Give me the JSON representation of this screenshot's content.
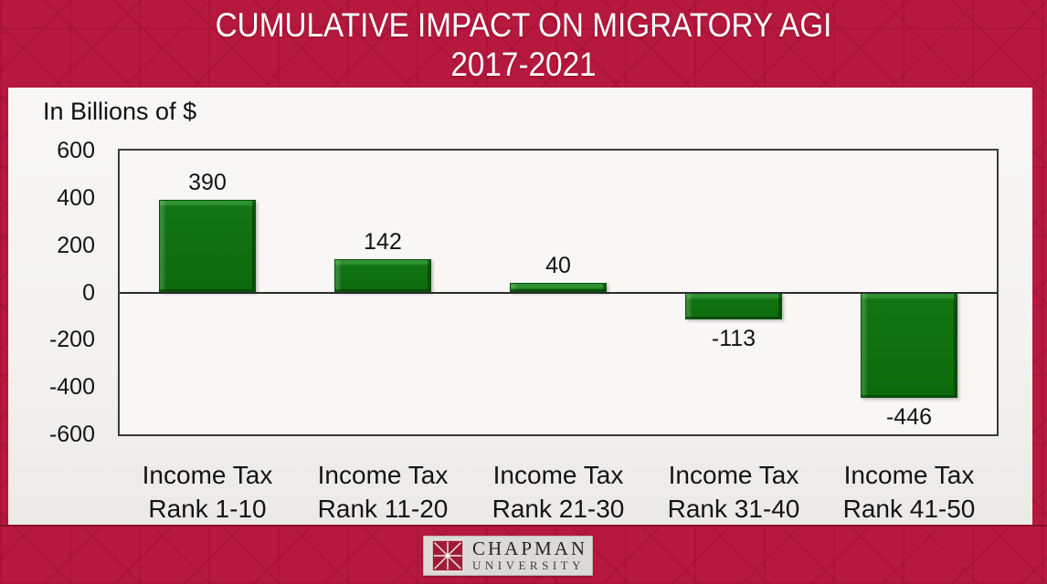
{
  "header": {
    "title_line1": "CUMULATIVE IMPACT ON MIGRATORY AGI",
    "title_line2": "2017-2021"
  },
  "chart": {
    "units_label": "In Billions of $"
  },
  "chart_data": {
    "type": "bar",
    "title": "CUMULATIVE IMPACT ON MIGRATORY AGI 2017-2021",
    "ylabel": "In Billions of $",
    "categories": [
      "Income Tax Rank 1-10",
      "Income Tax Rank 11-20",
      "Income Tax Rank 21-30",
      "Income Tax Rank 31-40",
      "Income Tax Rank 41-50"
    ],
    "category_lines": [
      {
        "line1": "Income Tax",
        "line2": "Rank 1-10"
      },
      {
        "line1": "Income Tax",
        "line2": "Rank 11-20"
      },
      {
        "line1": "Income Tax",
        "line2": "Rank 21-30"
      },
      {
        "line1": "Income Tax",
        "line2": "Rank 31-40"
      },
      {
        "line1": "Income Tax",
        "line2": "Rank 41-50"
      }
    ],
    "values": [
      390,
      142,
      40,
      -113,
      -446
    ],
    "ylim": [
      -600,
      600
    ],
    "yticks": [
      600,
      400,
      200,
      0,
      -200,
      -400,
      -600
    ],
    "grid": false,
    "legend": false,
    "bar_color": "#0c6b0c"
  },
  "footer": {
    "logo_line1": "CHAPMAN",
    "logo_line2": "UNIVERSITY"
  },
  "colors": {
    "brand_red": "#b6183e",
    "bar_green": "#0c6b0c",
    "body_bg": "#f3f2f0",
    "text": "#1a1a1a",
    "title_text": "#ffffff"
  }
}
